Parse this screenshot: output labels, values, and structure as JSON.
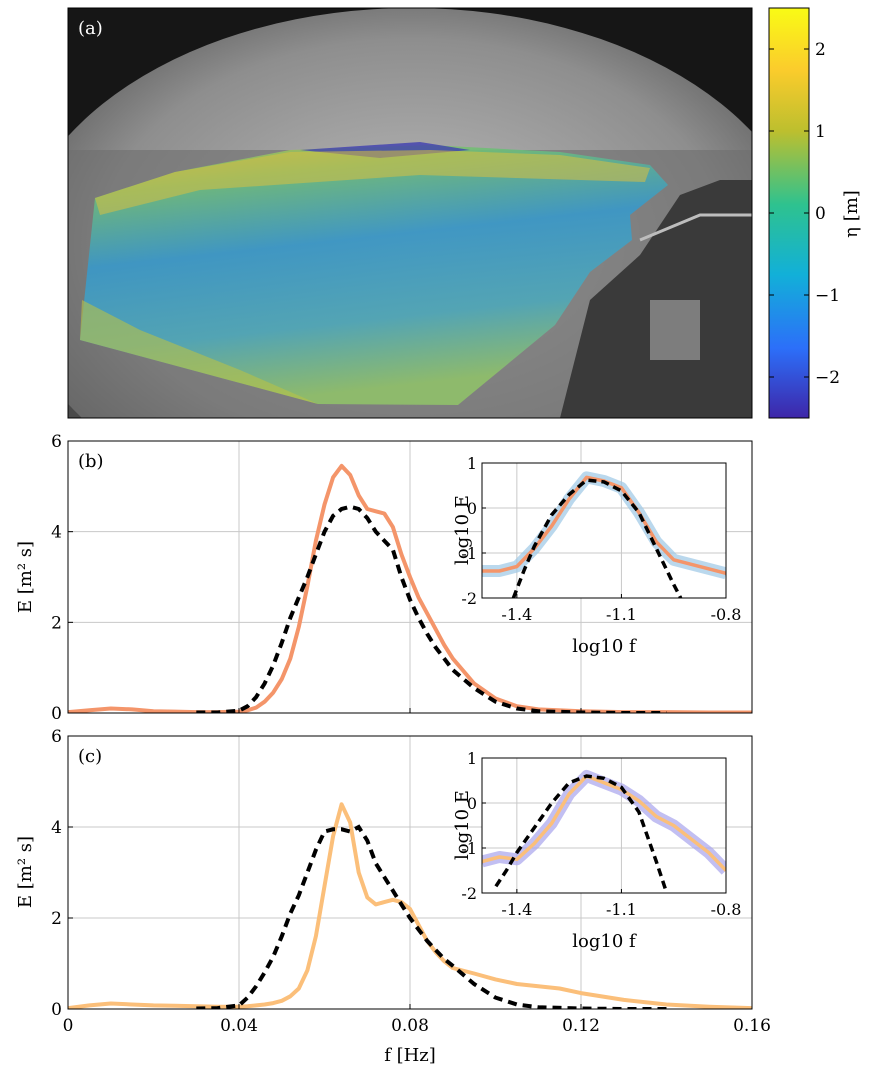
{
  "panel_a": {
    "label": "(a)",
    "colorbar": {
      "label": "η [m]",
      "ticks": [
        "2",
        "1",
        "0",
        "−1",
        "−2"
      ],
      "tick_values": [
        2,
        1,
        0,
        -1,
        -2
      ],
      "range": [
        -2.5,
        2.5
      ],
      "colormap": [
        "#3e26a8",
        "#2c6ff9",
        "#12b0d8",
        "#2ec28f",
        "#bdbf2e",
        "#fbcc2c",
        "#f9fb15"
      ]
    }
  },
  "panel_b": {
    "label": "(b)",
    "ylabel": "E [m² s]",
    "yticks": [
      "0",
      "2",
      "4",
      "6"
    ],
    "inset": {
      "xlabel": "log10 f",
      "ylabel": "log10 E",
      "xticks": [
        "-1.4",
        "-1.1",
        "-0.8"
      ],
      "yticks": [
        "1",
        "0",
        "-1",
        "-2"
      ]
    }
  },
  "panel_c": {
    "label": "(c)",
    "ylabel": "E [m² s]",
    "yticks": [
      "0",
      "2",
      "4",
      "6"
    ],
    "xlabel": "f [Hz]",
    "xticks": [
      "0",
      "0.04",
      "0.08",
      "0.12",
      "0.16"
    ],
    "inset": {
      "xlabel": "log10 f",
      "ylabel": "log10 E",
      "xticks": [
        "-1.4",
        "-1.1",
        "-0.8"
      ],
      "yticks": [
        "1",
        "0",
        "-1",
        "-2"
      ]
    }
  },
  "colors": {
    "b_solid": "#f4956a",
    "c_solid": "#fbbf7a",
    "dashed": "#000000",
    "inset_band_b": "#9cc8e6",
    "inset_band_c": "#a8a4ec",
    "grid": "#c8c8c8"
  },
  "chart_data": [
    {
      "type": "line",
      "panel": "b",
      "xlim": [
        0,
        0.16
      ],
      "ylim": [
        0,
        6
      ],
      "grid": true,
      "series": [
        {
          "style": "solid",
          "x": [
            0,
            0.005,
            0.01,
            0.015,
            0.02,
            0.025,
            0.03,
            0.035,
            0.04,
            0.042,
            0.044,
            0.046,
            0.048,
            0.05,
            0.052,
            0.054,
            0.056,
            0.058,
            0.06,
            0.062,
            0.064,
            0.066,
            0.068,
            0.07,
            0.072,
            0.074,
            0.076,
            0.078,
            0.08,
            0.082,
            0.084,
            0.086,
            0.088,
            0.09,
            0.095,
            0.1,
            0.105,
            0.11,
            0.12,
            0.13,
            0.14,
            0.15,
            0.16
          ],
          "y": [
            0.02,
            0.06,
            0.1,
            0.08,
            0.04,
            0.03,
            0.02,
            0.02,
            0.03,
            0.06,
            0.12,
            0.25,
            0.45,
            0.75,
            1.2,
            1.9,
            2.8,
            3.8,
            4.6,
            5.2,
            5.45,
            5.25,
            4.8,
            4.5,
            4.45,
            4.4,
            4.1,
            3.5,
            3.0,
            2.55,
            2.2,
            1.85,
            1.5,
            1.2,
            0.65,
            0.32,
            0.15,
            0.08,
            0.04,
            0.02,
            0.02,
            0.01,
            0.01
          ]
        },
        {
          "style": "dashed",
          "x": [
            0.03,
            0.035,
            0.04,
            0.042,
            0.044,
            0.046,
            0.048,
            0.05,
            0.052,
            0.054,
            0.056,
            0.058,
            0.06,
            0.062,
            0.064,
            0.066,
            0.068,
            0.07,
            0.072,
            0.074,
            0.076,
            0.078,
            0.08,
            0.082,
            0.084,
            0.086,
            0.088,
            0.09,
            0.095,
            0.1,
            0.105,
            0.11,
            0.12,
            0.13,
            0.14
          ],
          "y": [
            0.01,
            0.01,
            0.05,
            0.15,
            0.35,
            0.65,
            1.05,
            1.55,
            2.1,
            2.55,
            3.0,
            3.5,
            4.0,
            4.35,
            4.5,
            4.55,
            4.5,
            4.3,
            4.0,
            3.8,
            3.6,
            3.0,
            2.5,
            2.1,
            1.75,
            1.45,
            1.2,
            0.95,
            0.55,
            0.25,
            0.1,
            0.04,
            0.01,
            0.0,
            0.0
          ]
        }
      ],
      "inset": {
        "xlim": [
          -1.5,
          -0.8
        ],
        "ylim": [
          -2,
          1
        ],
        "xticks": [
          -1.4,
          -1.1,
          -0.8
        ],
        "yticks": [
          1,
          0,
          -1,
          -2
        ],
        "series": [
          {
            "style": "solid-band",
            "x": [
              -1.5,
              -1.45,
              -1.4,
              -1.35,
              -1.3,
              -1.25,
              -1.2,
              -1.15,
              -1.1,
              -1.05,
              -1.0,
              -0.95,
              -0.9,
              -0.85,
              -0.8
            ],
            "y": [
              -1.4,
              -1.4,
              -1.3,
              -0.9,
              -0.4,
              0.2,
              0.68,
              0.6,
              0.45,
              -0.1,
              -0.75,
              -1.15,
              -1.25,
              -1.35,
              -1.45
            ]
          },
          {
            "style": "dashed",
            "x": [
              -1.41,
              -1.38,
              -1.35,
              -1.3,
              -1.25,
              -1.2,
              -1.15,
              -1.1,
              -1.05,
              -1.0,
              -0.95,
              -0.93
            ],
            "y": [
              -2.0,
              -1.4,
              -0.85,
              -0.15,
              0.3,
              0.62,
              0.58,
              0.38,
              -0.1,
              -0.9,
              -1.7,
              -2.0
            ]
          }
        ]
      }
    },
    {
      "type": "line",
      "panel": "c",
      "xlim": [
        0,
        0.16
      ],
      "ylim": [
        0,
        6
      ],
      "xlabel": "f [Hz]",
      "grid": true,
      "series": [
        {
          "style": "solid",
          "x": [
            0,
            0.005,
            0.01,
            0.015,
            0.02,
            0.025,
            0.03,
            0.035,
            0.04,
            0.042,
            0.044,
            0.046,
            0.048,
            0.05,
            0.052,
            0.054,
            0.056,
            0.058,
            0.06,
            0.062,
            0.064,
            0.066,
            0.068,
            0.07,
            0.072,
            0.074,
            0.076,
            0.078,
            0.08,
            0.082,
            0.084,
            0.086,
            0.088,
            0.09,
            0.095,
            0.1,
            0.105,
            0.11,
            0.115,
            0.12,
            0.13,
            0.14,
            0.15,
            0.16
          ],
          "y": [
            0.02,
            0.08,
            0.12,
            0.1,
            0.08,
            0.07,
            0.06,
            0.05,
            0.05,
            0.06,
            0.08,
            0.1,
            0.13,
            0.18,
            0.28,
            0.45,
            0.85,
            1.6,
            2.7,
            3.8,
            4.5,
            4.1,
            3.0,
            2.45,
            2.3,
            2.35,
            2.4,
            2.35,
            2.2,
            1.85,
            1.5,
            1.25,
            1.05,
            0.9,
            0.78,
            0.65,
            0.55,
            0.5,
            0.45,
            0.35,
            0.2,
            0.1,
            0.05,
            0.02
          ]
        },
        {
          "style": "dashed",
          "x": [
            0.03,
            0.035,
            0.04,
            0.042,
            0.044,
            0.046,
            0.048,
            0.05,
            0.052,
            0.054,
            0.056,
            0.058,
            0.06,
            0.062,
            0.064,
            0.066,
            0.068,
            0.07,
            0.072,
            0.074,
            0.076,
            0.078,
            0.08,
            0.082,
            0.084,
            0.086,
            0.088,
            0.09,
            0.095,
            0.1,
            0.105,
            0.11,
            0.12,
            0.13,
            0.14
          ],
          "y": [
            0.01,
            0.02,
            0.08,
            0.25,
            0.5,
            0.8,
            1.15,
            1.6,
            2.1,
            2.5,
            3.0,
            3.5,
            3.9,
            3.95,
            3.95,
            3.9,
            4.0,
            3.7,
            3.2,
            2.9,
            2.6,
            2.3,
            2.0,
            1.75,
            1.5,
            1.3,
            1.1,
            0.95,
            0.55,
            0.25,
            0.1,
            0.04,
            0.01,
            0.0,
            0.0
          ]
        }
      ],
      "inset": {
        "xlim": [
          -1.5,
          -0.8
        ],
        "ylim": [
          -2,
          1
        ],
        "xticks": [
          -1.4,
          -1.1,
          -0.8
        ],
        "yticks": [
          1,
          0,
          -1,
          -2
        ],
        "series": [
          {
            "style": "solid-band",
            "x": [
              -1.5,
              -1.45,
              -1.4,
              -1.35,
              -1.3,
              -1.25,
              -1.2,
              -1.15,
              -1.1,
              -1.05,
              -1.0,
              -0.95,
              -0.9,
              -0.85,
              -0.8
            ],
            "y": [
              -1.3,
              -1.2,
              -1.25,
              -0.9,
              -0.45,
              0.2,
              0.6,
              0.45,
              0.3,
              0.05,
              -0.3,
              -0.5,
              -0.8,
              -1.1,
              -1.5
            ]
          },
          {
            "style": "dashed",
            "x": [
              -1.46,
              -1.43,
              -1.4,
              -1.35,
              -1.3,
              -1.25,
              -1.2,
              -1.15,
              -1.1,
              -1.05,
              -1.0,
              -0.97
            ],
            "y": [
              -1.85,
              -1.5,
              -1.1,
              -0.55,
              0.0,
              0.45,
              0.6,
              0.55,
              0.35,
              -0.2,
              -1.3,
              -2.0
            ]
          }
        ]
      }
    }
  ]
}
